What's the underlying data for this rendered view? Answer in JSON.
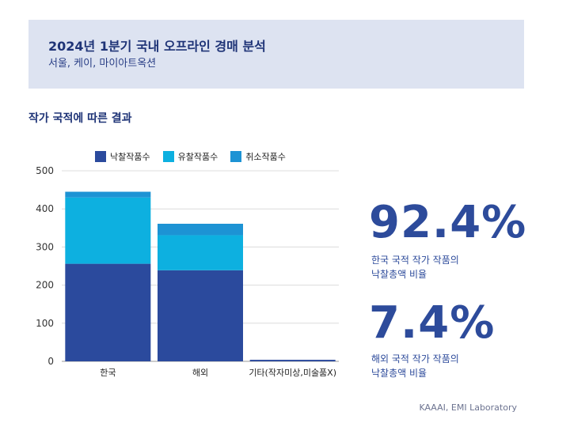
{
  "header": {
    "title": "2024년 1분기 국내 오프라인 경매 분석",
    "subtitle": "서울, 케이, 마이아트옥션"
  },
  "section_title": "작가 국적에 따른 결과",
  "stats": [
    {
      "value": "92.4%",
      "line1": "한국 국적 작가 작품의",
      "line2": "낙찰총액 비율"
    },
    {
      "value": "7.4%",
      "line1": "해외 국적 작가 작품의",
      "line2": "낙찰총액 비율"
    }
  ],
  "footer": "KAAAI, EMI Laboratory",
  "colors": {
    "sold": "#2b4a9d",
    "unsold": "#0db0e0",
    "cancelled": "#1d93d4"
  },
  "chart_data": {
    "type": "bar",
    "stacked": true,
    "categories": [
      "한국",
      "해외",
      "기타(작자미상,미술품X)"
    ],
    "series": [
      {
        "name": "낙찰작품수",
        "values": [
          256,
          239,
          4
        ]
      },
      {
        "name": "유찰작품수",
        "values": [
          174,
          92,
          0
        ]
      },
      {
        "name": "취소작품수",
        "values": [
          15,
          30,
          0
        ]
      }
    ],
    "ylim": [
      0,
      500
    ],
    "yticks": [
      0,
      100,
      200,
      300,
      400,
      500
    ],
    "grid": true,
    "legend_position": "top"
  }
}
